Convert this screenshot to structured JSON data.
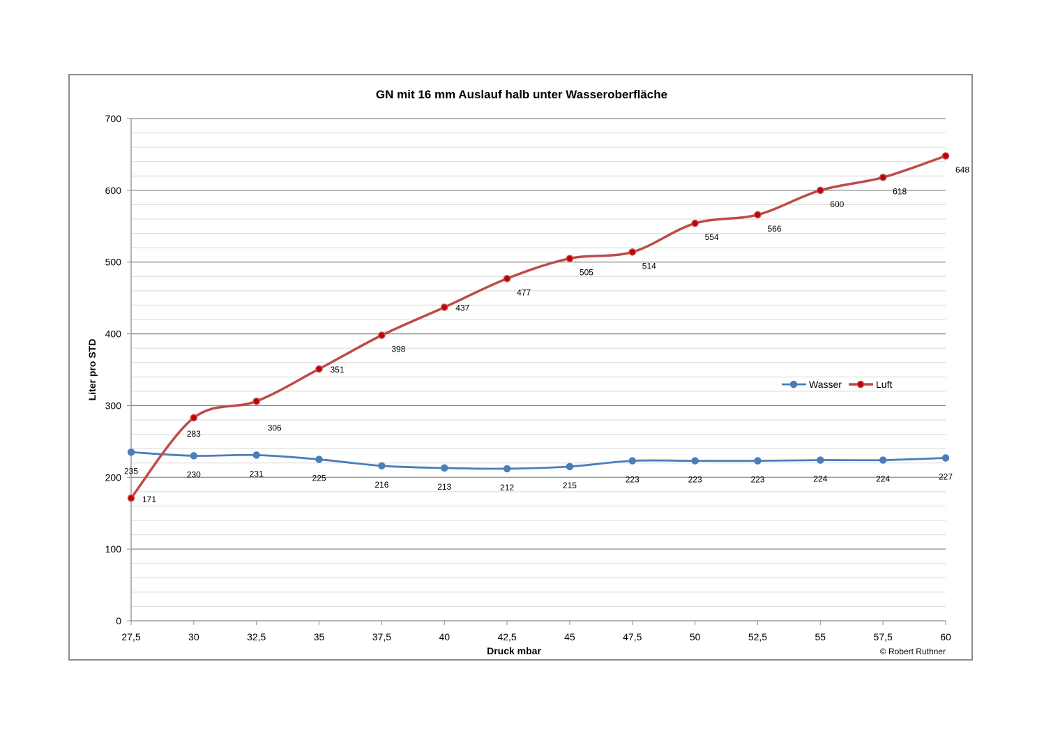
{
  "chart_data": {
    "type": "line",
    "title": "GN mit 16 mm Auslauf halb unter Wasseroberfläche",
    "xlabel": "Druck mbar",
    "ylabel": "Liter  pro  STD",
    "categories": [
      "27,5",
      "30",
      "32,5",
      "35",
      "37,5",
      "40",
      "42,5",
      "45",
      "47,5",
      "50",
      "52,5",
      "55",
      "57,5",
      "60"
    ],
    "ylim": [
      0,
      700
    ],
    "yticks": [
      "0",
      "100",
      "200",
      "300",
      "400",
      "500",
      "600",
      "700"
    ],
    "grid": "horizontal major and minor",
    "legend_position": "right",
    "series": [
      {
        "name": "Wasser",
        "color": "#4a7ebb",
        "values": [
          235,
          230,
          231,
          225,
          216,
          213,
          212,
          215,
          223,
          223,
          223,
          224,
          224,
          227
        ]
      },
      {
        "name": "Luft",
        "color": "#be4b48",
        "values": [
          171,
          283,
          306,
          351,
          398,
          437,
          477,
          505,
          514,
          554,
          566,
          600,
          618,
          648
        ]
      }
    ],
    "annotation": "© Robert Ruthner"
  }
}
